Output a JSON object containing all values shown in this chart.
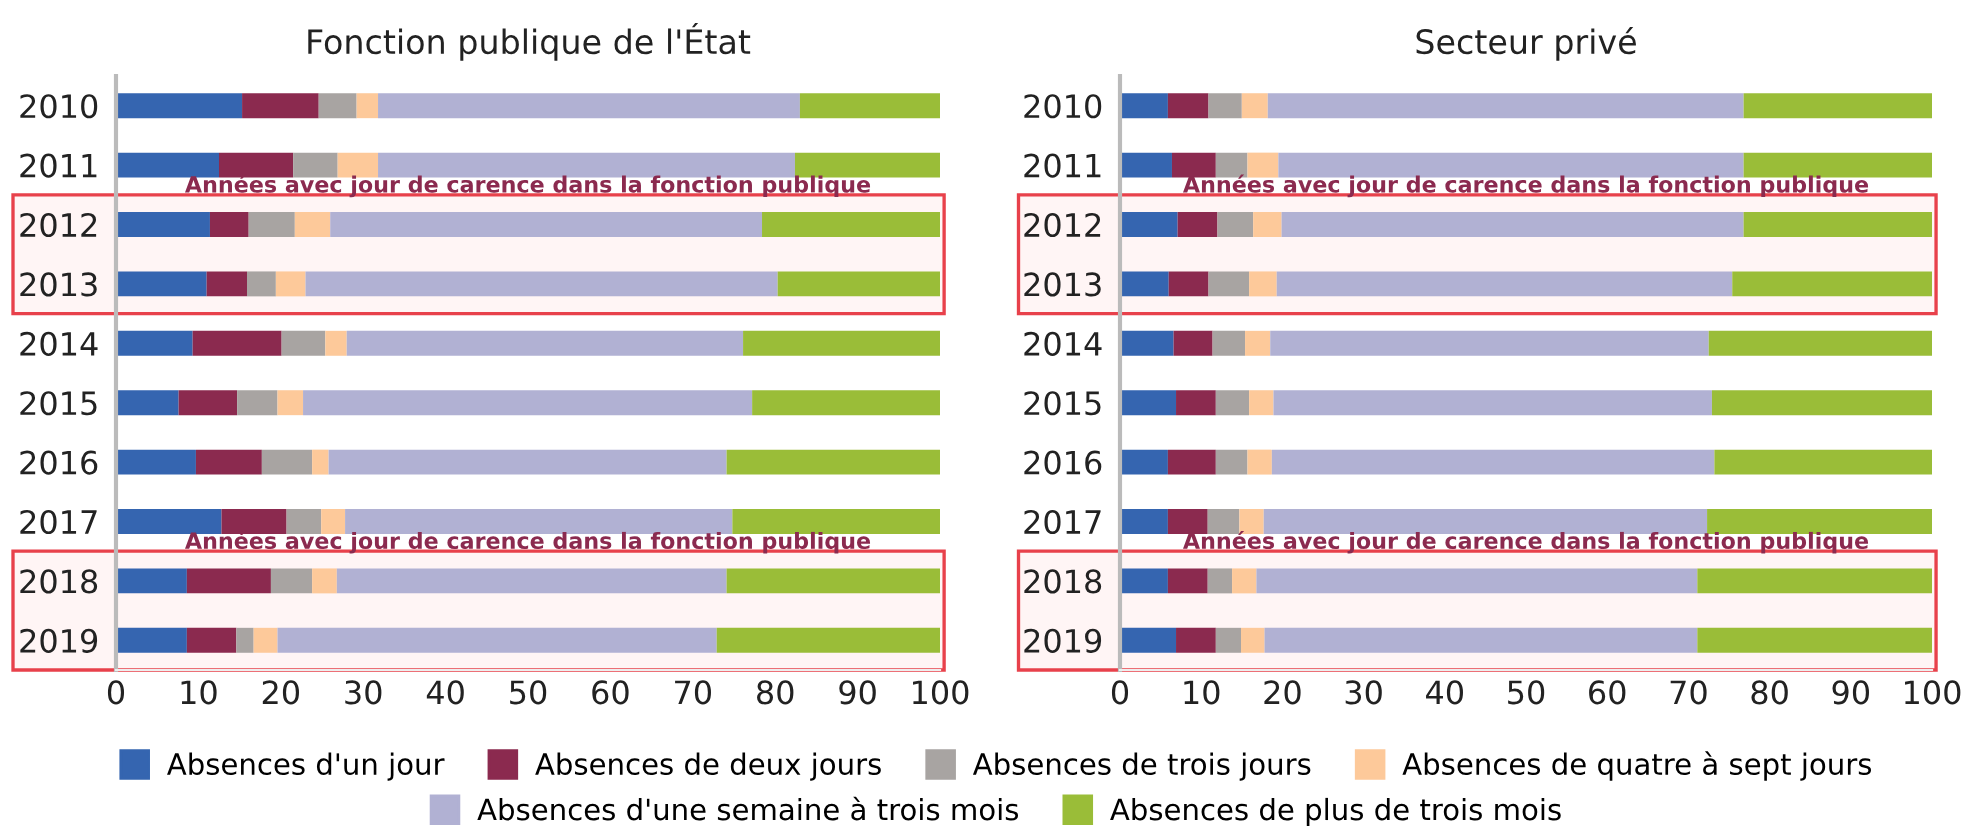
{
  "chart_data": [
    {
      "type": "bar",
      "orientation": "horizontal",
      "stacked": true,
      "title": "Fonction publique de l'État",
      "categories": [
        "2010",
        "2011",
        "2012",
        "2013",
        "2014",
        "2015",
        "2016",
        "2017",
        "2018",
        "2019"
      ],
      "series": [
        {
          "name": "Absences d'un jour",
          "color": "#3565b0",
          "values": [
            15.3,
            12.5,
            11.4,
            11.0,
            9.3,
            7.6,
            9.7,
            12.8,
            8.6,
            8.6
          ]
        },
        {
          "name": "Absences de deux jours",
          "color": "#8b2a4f",
          "values": [
            9.3,
            9.0,
            4.7,
            4.9,
            10.8,
            7.1,
            8.0,
            7.9,
            10.2,
            6.0
          ]
        },
        {
          "name": "Absences de trois jours",
          "color": "#a8a4a2",
          "values": [
            4.6,
            5.4,
            5.6,
            3.5,
            5.3,
            4.9,
            6.1,
            4.2,
            5.0,
            2.1
          ]
        },
        {
          "name": "Absences de quatre à sept jours",
          "color": "#fdc99a",
          "values": [
            2.6,
            4.9,
            4.3,
            3.6,
            2.6,
            3.1,
            2.0,
            2.9,
            3.0,
            2.9
          ]
        },
        {
          "name": "Absences d'une semaine à trois mois",
          "color": "#b1b1d3",
          "values": [
            51.2,
            50.6,
            52.4,
            57.3,
            48.1,
            54.5,
            48.3,
            47.0,
            47.3,
            53.3
          ]
        },
        {
          "name": "Absences de plus de trois mois",
          "color": "#9abd38",
          "values": [
            17.0,
            17.6,
            21.6,
            19.7,
            23.9,
            22.8,
            25.9,
            25.2,
            25.9,
            27.1
          ]
        }
      ],
      "xlim": [
        0,
        100
      ],
      "xticks": [
        0,
        10,
        20,
        30,
        40,
        50,
        60,
        70,
        80,
        90,
        100
      ],
      "grid": false,
      "legend": "bottom",
      "bands": [
        {
          "axis": "y",
          "from": "2012",
          "to": "2013",
          "label": "Années avec jour de carence dans la fonction publique",
          "color": "#e8414b"
        },
        {
          "axis": "y",
          "from": "2018",
          "to": "2019",
          "label": "Années avec jour de carence dans la fonction publique",
          "color": "#e8414b"
        }
      ]
    },
    {
      "type": "bar",
      "orientation": "horizontal",
      "stacked": true,
      "title": "Secteur privé",
      "categories": [
        "2010",
        "2011",
        "2012",
        "2013",
        "2014",
        "2015",
        "2016",
        "2017",
        "2018",
        "2019"
      ],
      "series": [
        {
          "name": "Absences d'un jour",
          "color": "#3565b0",
          "values": [
            5.9,
            6.4,
            7.1,
            6.0,
            6.6,
            6.9,
            5.9,
            5.9,
            5.9,
            6.9
          ]
        },
        {
          "name": "Absences de deux jours",
          "color": "#8b2a4f",
          "values": [
            5.0,
            5.4,
            4.9,
            4.9,
            4.8,
            4.9,
            5.9,
            4.9,
            4.9,
            4.9
          ]
        },
        {
          "name": "Absences de trois jours",
          "color": "#a8a4a2",
          "values": [
            4.1,
            3.9,
            4.4,
            5.0,
            4.0,
            4.1,
            3.9,
            3.9,
            3.0,
            3.1
          ]
        },
        {
          "name": "Absences de quatre à sept jours",
          "color": "#fdc99a",
          "values": [
            3.2,
            3.8,
            3.5,
            3.4,
            3.1,
            3.0,
            3.0,
            3.0,
            3.0,
            2.9
          ]
        },
        {
          "name": "Absences d'une semaine à trois mois",
          "color": "#b1b1d3",
          "values": [
            58.6,
            57.3,
            56.9,
            56.1,
            54.0,
            54.0,
            54.5,
            54.6,
            54.3,
            53.3
          ]
        },
        {
          "name": "Absences de plus de trois mois",
          "color": "#9abd38",
          "values": [
            23.2,
            23.2,
            23.2,
            24.6,
            27.5,
            27.1,
            26.8,
            27.7,
            28.9,
            28.9
          ]
        }
      ],
      "xlim": [
        0,
        100
      ],
      "xticks": [
        0,
        10,
        20,
        30,
        40,
        50,
        60,
        70,
        80,
        90,
        100
      ],
      "grid": false,
      "bands": [
        {
          "axis": "y",
          "from": "2012",
          "to": "2013",
          "label": "Années avec jour de carence dans la fonction publique",
          "color": "#e8414b"
        },
        {
          "axis": "y",
          "from": "2018",
          "to": "2019",
          "label": "Années avec jour de carence dans la fonction publique",
          "color": "#e8414b"
        }
      ]
    }
  ]
}
